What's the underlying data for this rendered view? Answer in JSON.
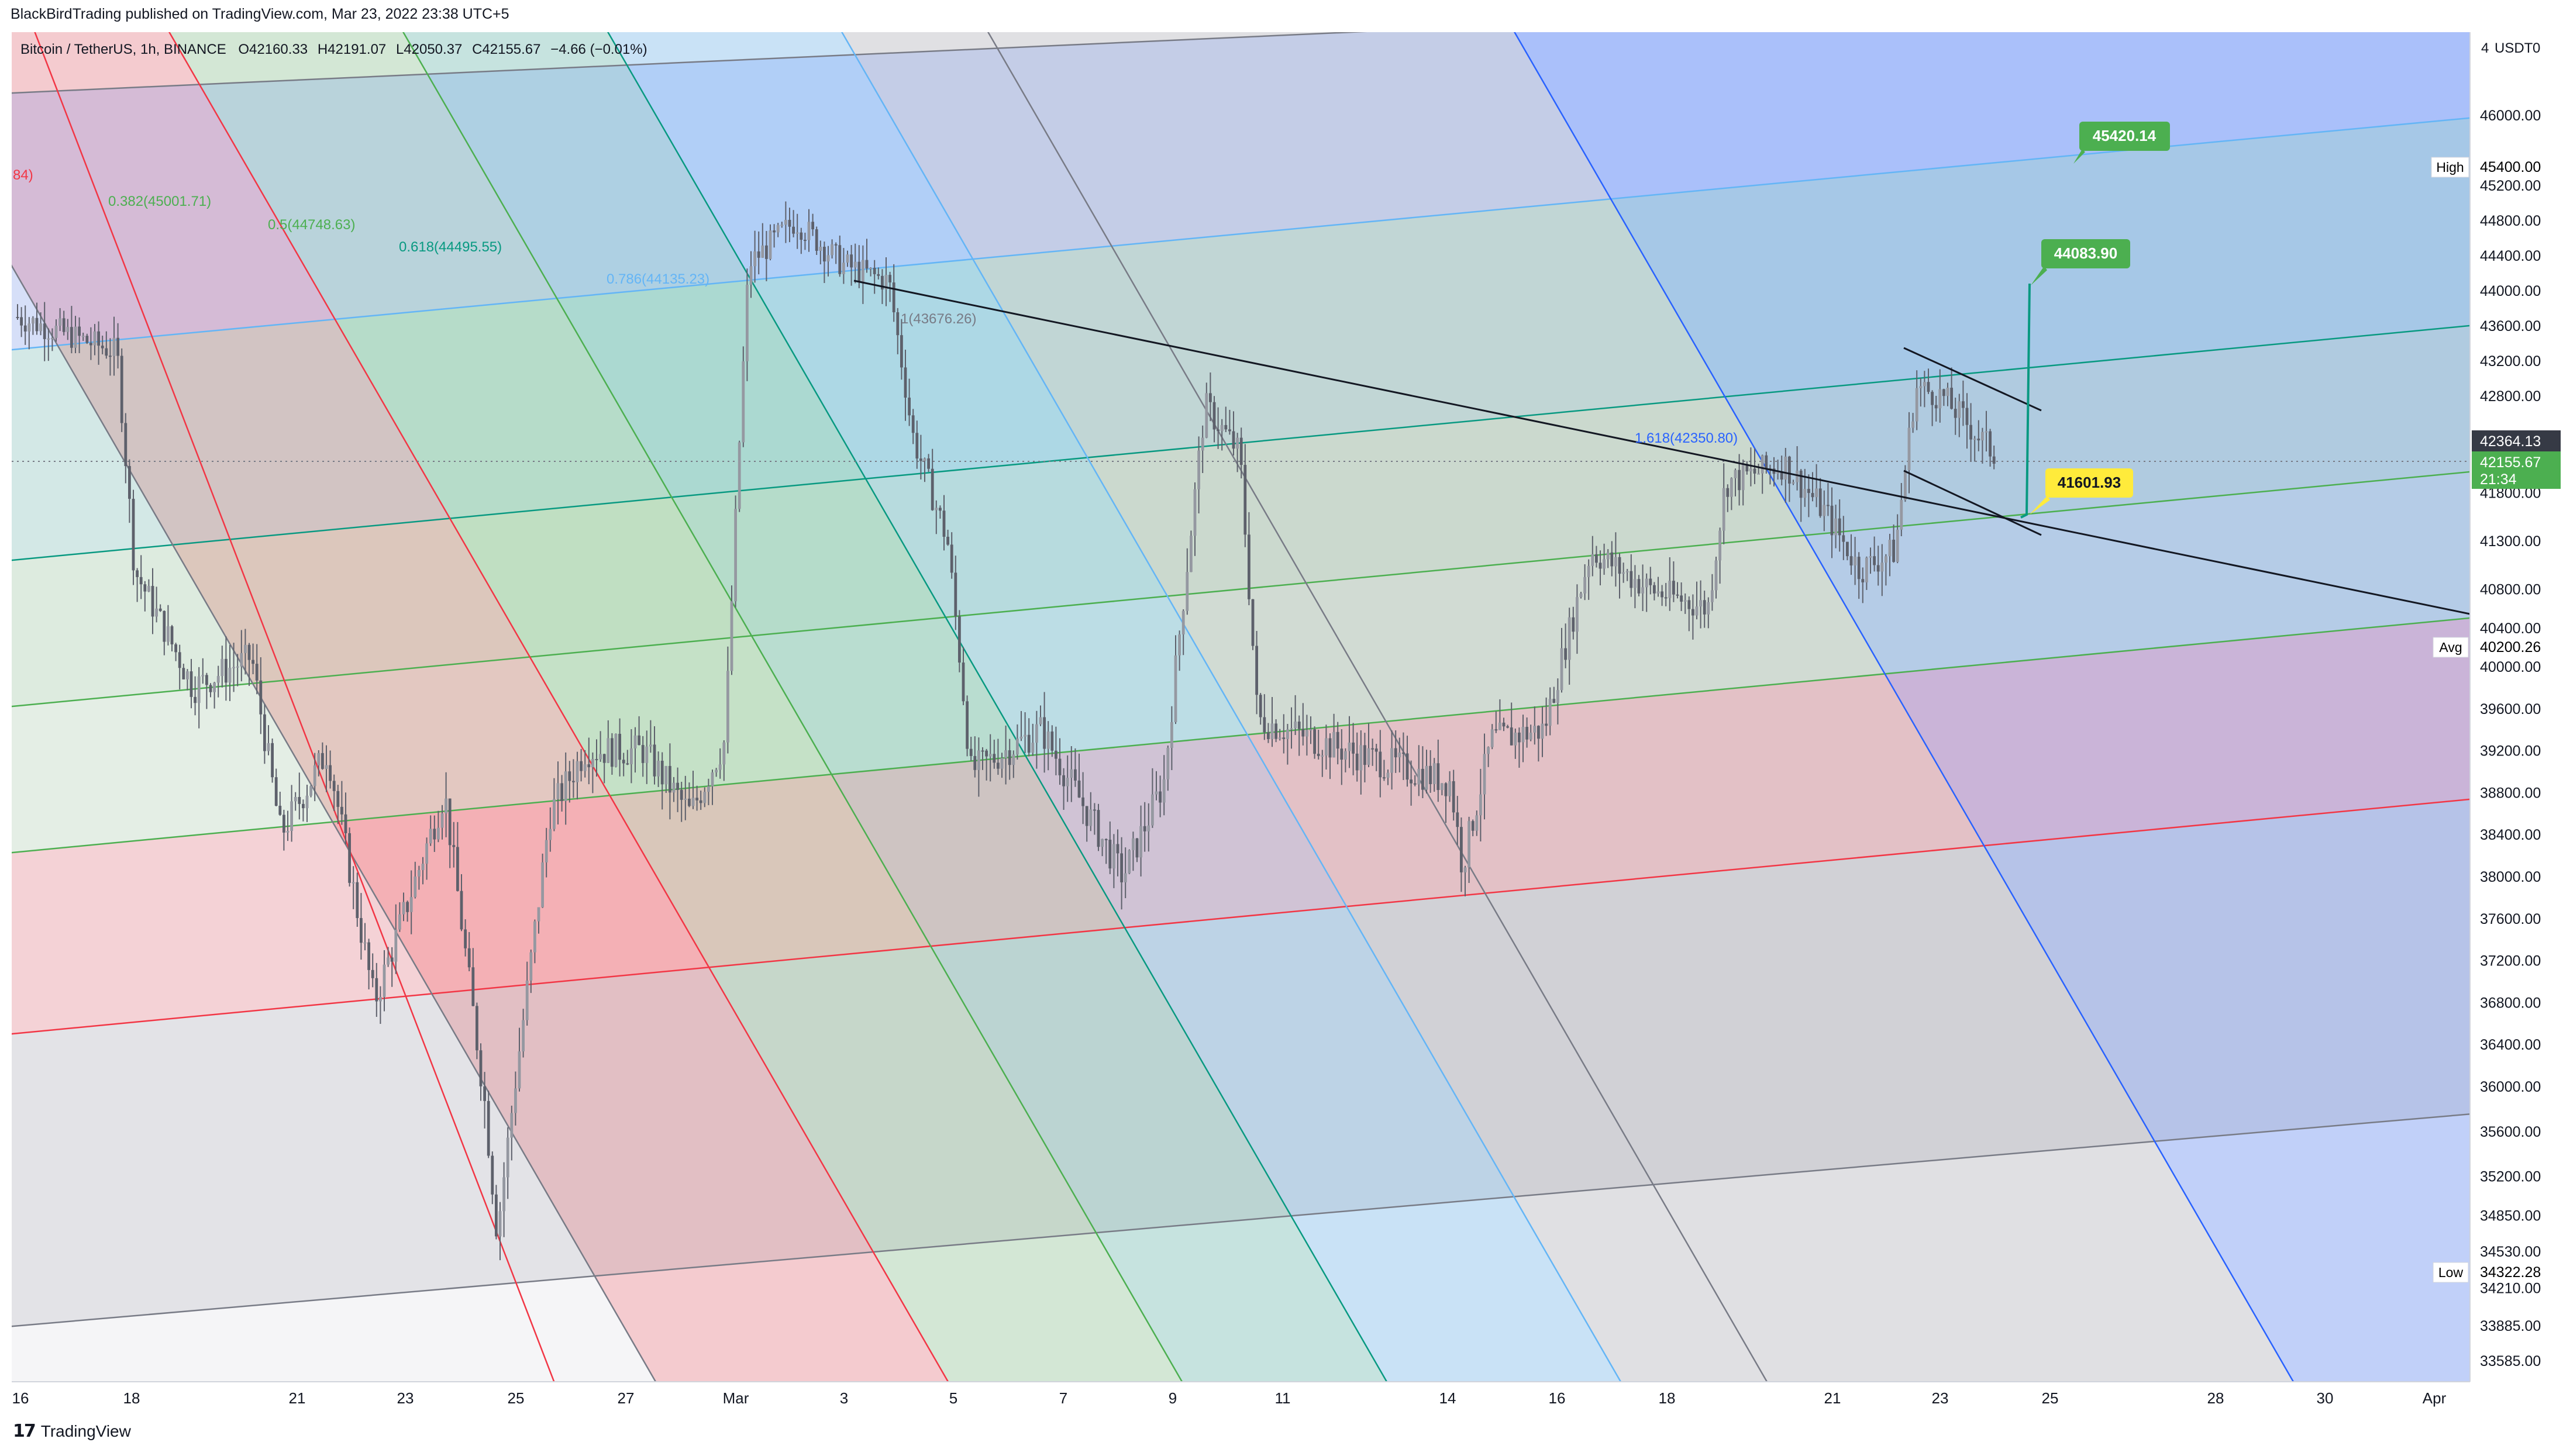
{
  "publisher_line": "BlackBirdTrading published on TradingView.com, Mar 23, 2022 23:38 UTC+5",
  "brand": "TradingView",
  "brand_icon": "tradingview-logo-icon",
  "chart_data": {
    "type": "candlestick",
    "symbol_line": {
      "symbol": "Bitcoin / TetherUS, 1h, BINANCE",
      "open": "O42160.33",
      "high": "H42191.07",
      "low": "L42050.37",
      "close": "C42155.67",
      "change": "−4.66 (−0.01%)"
    },
    "currency": "USDT",
    "top_corner": "4",
    "top_corner_value": "0",
    "y_ticks": [
      "46000.00",
      "45200.00",
      "44800.00",
      "44400.00",
      "44000.00",
      "43600.00",
      "43200.00",
      "42800.00",
      "41800.00",
      "41300.00",
      "40800.00",
      "40400.00",
      "40000.00",
      "39600.00",
      "39200.00",
      "38800.00",
      "38400.00",
      "38000.00",
      "37600.00",
      "37200.00",
      "36800.00",
      "36400.00",
      "36000.00",
      "35600.00",
      "35200.00",
      "34850.00",
      "34530.00",
      "34210.00",
      "33885.00",
      "33585.00"
    ],
    "x_ticks": [
      "16",
      "18",
      "21",
      "23",
      "25",
      "27",
      "Mar",
      "3",
      "5",
      "7",
      "9",
      "11",
      "14",
      "16",
      "18",
      "21",
      "23",
      "25",
      "28",
      "30",
      "Apr"
    ],
    "price_labels": {
      "high": {
        "name": "High",
        "value": "45400.00"
      },
      "avg": {
        "name": "Avg",
        "value": "40200.26"
      },
      "low": {
        "name": "Low",
        "value": "34322.28"
      },
      "last": "42364.13",
      "current": "42155.67",
      "countdown": "21:34"
    },
    "fib_labels": [
      "84)",
      "0.382(45001.71)",
      "0.5(44748.63)",
      "0.618(44495.55)",
      "0.786(44135.23)",
      "1(43676.26)",
      "1.618(42350.80)"
    ],
    "targets": [
      "45420.14",
      "44083.90",
      "41601.93"
    ],
    "key_points": {
      "range_high": 45420.14,
      "range_low": 34322.28,
      "last_close": 42155.67,
      "mid_target": 44083.9,
      "support": 41601.93
    },
    "colors": {
      "up_candle": "#787b86",
      "target_green": "#4caf50",
      "target_yellow": "#ffeb3b",
      "current_price": "#4caf50",
      "last_price": "#363a45",
      "fib_red": "#f23645",
      "fib_green": "#4caf50",
      "fib_teal": "#089981",
      "fib_blue": "#2962ff",
      "fib_lightblue": "#64b5f6"
    }
  }
}
